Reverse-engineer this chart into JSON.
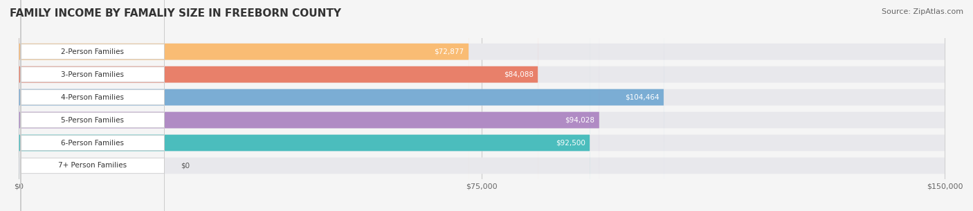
{
  "title": "FAMILY INCOME BY FAMALIY SIZE IN FREEBORN COUNTY",
  "source": "Source: ZipAtlas.com",
  "categories": [
    "2-Person Families",
    "3-Person Families",
    "4-Person Families",
    "5-Person Families",
    "6-Person Families",
    "7+ Person Families"
  ],
  "values": [
    72877,
    84088,
    104464,
    94028,
    92500,
    0
  ],
  "bar_colors": [
    "#F9BC74",
    "#E8806A",
    "#7BADD4",
    "#B08BC4",
    "#4BBDBD",
    "#B8C4E8"
  ],
  "bar_bg_color": "#E8E8EC",
  "value_labels": [
    "$72,877",
    "$84,088",
    "$104,464",
    "$94,028",
    "$92,500",
    "$0"
  ],
  "xlim": [
    0,
    150000
  ],
  "xticks": [
    0,
    75000,
    150000
  ],
  "xtick_labels": [
    "$0",
    "$75,000",
    "$150,000"
  ],
  "background_color": "#F5F5F5",
  "label_bg_color": "#FFFFFF",
  "title_fontsize": 11,
  "bar_height": 0.72,
  "figsize": [
    14.06,
    3.05
  ],
  "dpi": 100
}
